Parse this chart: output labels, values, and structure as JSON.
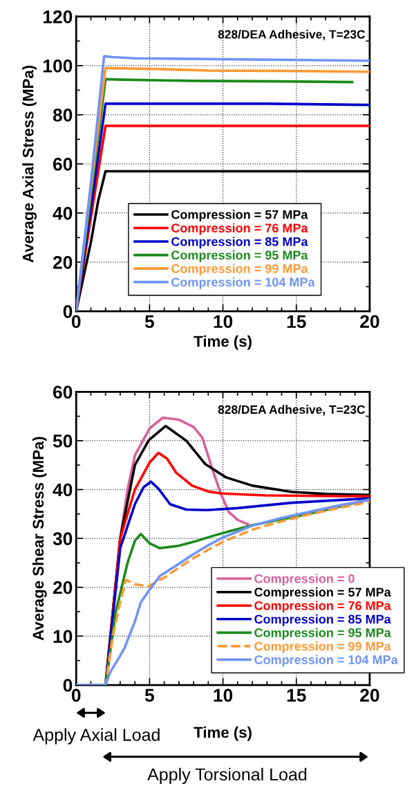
{
  "chart_data": [
    {
      "type": "line",
      "xlabel": "Time (s)",
      "ylabel": "Average Axial Stress (MPa)",
      "annotations": [
        "828/DEA Adhesive, T=23C"
      ],
      "xlim": [
        0,
        20
      ],
      "ylim": [
        0,
        120
      ],
      "xticks": [
        0,
        5,
        10,
        15,
        20
      ],
      "yticks": [
        0,
        20,
        40,
        60,
        80,
        100,
        120
      ],
      "grid": true,
      "legend": "bottom right",
      "line_style": "solid",
      "marker": "none",
      "series": [
        {
          "name": "Compression = 57 MPa",
          "color": "#000000",
          "x": [
            0,
            1,
            1.5,
            2,
            4,
            20
          ],
          "values": [
            0,
            28,
            45,
            57,
            57,
            57
          ]
        },
        {
          "name": "Compression = 76 MPa",
          "color": "#ff0000",
          "x": [
            0,
            1,
            2,
            20
          ],
          "values": [
            0,
            38,
            75.5,
            75.5
          ]
        },
        {
          "name": "Compression = 85 MPa",
          "color": "#0000cc",
          "x": [
            0,
            1,
            2,
            13,
            20
          ],
          "values": [
            0,
            42,
            84.5,
            84.5,
            84
          ]
        },
        {
          "name": "Compression = 95 MPa",
          "color": "#1a8a1a",
          "x": [
            0,
            1,
            2,
            3,
            8,
            14,
            18.8
          ],
          "values": [
            0,
            47,
            94.5,
            94.3,
            93.8,
            93.6,
            93.3
          ]
        },
        {
          "name": "Compression = 99 MPa",
          "color": "#ff9933",
          "x": [
            0,
            1,
            2,
            5,
            9,
            15,
            20
          ],
          "values": [
            0,
            50,
            99,
            98.7,
            98,
            97.8,
            97.5
          ]
        },
        {
          "name": "Compression = 104 MPa",
          "color": "#6f94f7",
          "x": [
            0,
            1,
            1.9,
            2.5,
            4,
            20
          ],
          "values": [
            0,
            52,
            103.8,
            103.5,
            103,
            102
          ]
        }
      ]
    },
    {
      "type": "line",
      "xlabel": "Time (s)",
      "ylabel": "Average Shear Stress (MPa)",
      "annotations": [
        "828/DEA Adhesive, T=23C",
        "Apply Axial Load",
        "Apply Torsional Load"
      ],
      "xlim": [
        0,
        20
      ],
      "ylim": [
        0,
        60
      ],
      "xticks": [
        0,
        5,
        10,
        15,
        20
      ],
      "yticks": [
        0,
        10,
        20,
        30,
        40,
        50,
        60
      ],
      "grid": true,
      "legend": "bottom right",
      "marker": "none",
      "series": [
        {
          "name": "Compression = 0",
          "color": "#d9609a",
          "x": [
            0,
            2,
            3,
            3.5,
            4,
            5,
            5.9,
            7,
            8,
            8.6,
            9.3,
            9.85,
            10.4,
            11,
            11.7
          ],
          "values": [
            0,
            0,
            30,
            40,
            47,
            52.5,
            54.7,
            54.3,
            52.8,
            50.6,
            44,
            39.2,
            35.4,
            33.8,
            32.9
          ]
        },
        {
          "name": "Compression = 57 MPa",
          "color": "#000000",
          "x": [
            0,
            2,
            3,
            4,
            4.95,
            6.1,
            7.5,
            8.8,
            10.2,
            12,
            14.7,
            17,
            20
          ],
          "values": [
            0,
            0,
            30,
            45,
            50.1,
            53,
            50,
            45.2,
            42.5,
            40.8,
            39.5,
            39.1,
            38.9
          ]
        },
        {
          "name": "Compression = 76 MPa",
          "color": "#ff0000",
          "x": [
            0,
            2,
            3,
            4,
            5,
            5.6,
            6.2,
            6.8,
            7.9,
            9,
            9.9,
            12.9,
            20
          ],
          "values": [
            0,
            0,
            30,
            40,
            45.5,
            47.5,
            46.3,
            43.5,
            40.8,
            39.6,
            39.2,
            38.8,
            38.6
          ]
        },
        {
          "name": "Compression = 85 MPa",
          "color": "#0000cc",
          "x": [
            0,
            2,
            3,
            4,
            4.6,
            5.1,
            5.6,
            6.4,
            7.5,
            8.9,
            11,
            14.7,
            20
          ],
          "values": [
            0,
            0,
            28,
            37,
            40.5,
            41.6,
            40.2,
            37,
            35.9,
            35.8,
            36.2,
            37.3,
            38.2
          ]
        },
        {
          "name": "Compression = 95 MPa",
          "color": "#1a8a1a",
          "x": [
            0,
            2,
            2.7,
            3.5,
            4,
            4.4,
            5,
            5.7,
            7,
            8,
            9.3,
            10.5,
            12,
            14.7,
            17,
            20
          ],
          "values": [
            0,
            0,
            15,
            25,
            29.5,
            30.9,
            29,
            28,
            28.5,
            29.3,
            30.5,
            31.5,
            32.7,
            34.3,
            35.8,
            38
          ]
        },
        {
          "name": "Compression = 99 MPa",
          "color": "#ff9933",
          "line_style": "dashed",
          "x": [
            0,
            2,
            2.5,
            3,
            3.4,
            4,
            4.95,
            6,
            7,
            8,
            9,
            10,
            12,
            14,
            16,
            18,
            20
          ],
          "values": [
            0,
            0,
            10,
            17,
            21.5,
            20.6,
            20.2,
            22,
            24,
            26,
            27.7,
            29.3,
            31.8,
            33.5,
            35,
            36.3,
            37.5
          ]
        },
        {
          "name": "Compression = 104 MPa",
          "color": "#6f94f7",
          "x": [
            0,
            2,
            2.3,
            3,
            3.3,
            4,
            4.4,
            5,
            5.7,
            7,
            8,
            9,
            10,
            12,
            14,
            16,
            18,
            20
          ],
          "values": [
            0,
            0,
            2.5,
            6,
            7.6,
            13,
            16.9,
            19.5,
            22.3,
            24.8,
            26.8,
            28.6,
            30.2,
            32.6,
            34.2,
            35.5,
            36.8,
            37.9
          ]
        }
      ]
    }
  ]
}
